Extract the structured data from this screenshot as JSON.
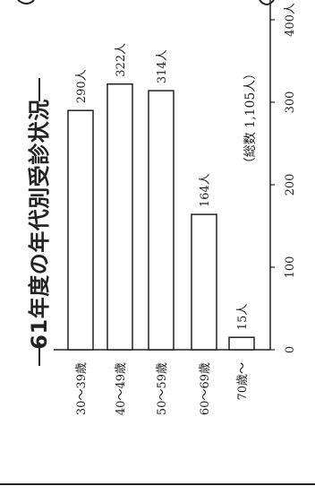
{
  "chart_data": {
    "type": "bar",
    "orientation": "rotated-90-clockwise",
    "title": "61年度の年代別受診状況",
    "annotation": "（総数 1,105人）",
    "categories": [
      "30～39歳",
      "40～49歳",
      "50～59歳",
      "60～69歳",
      "70歳～"
    ],
    "values": [
      290,
      322,
      314,
      164,
      15
    ],
    "value_labels": [
      "290人",
      "322人",
      "314人",
      "164人",
      "15人"
    ],
    "axis": {
      "min": 0,
      "max": 400,
      "ticks": [
        0,
        100,
        200,
        300,
        400
      ],
      "tick_labels": [
        "0",
        "100",
        "200",
        "300",
        "400人"
      ]
    },
    "grid": false,
    "legend": "none"
  },
  "colors": {
    "ink": "#222222",
    "bar_fill": "#ffffff"
  }
}
